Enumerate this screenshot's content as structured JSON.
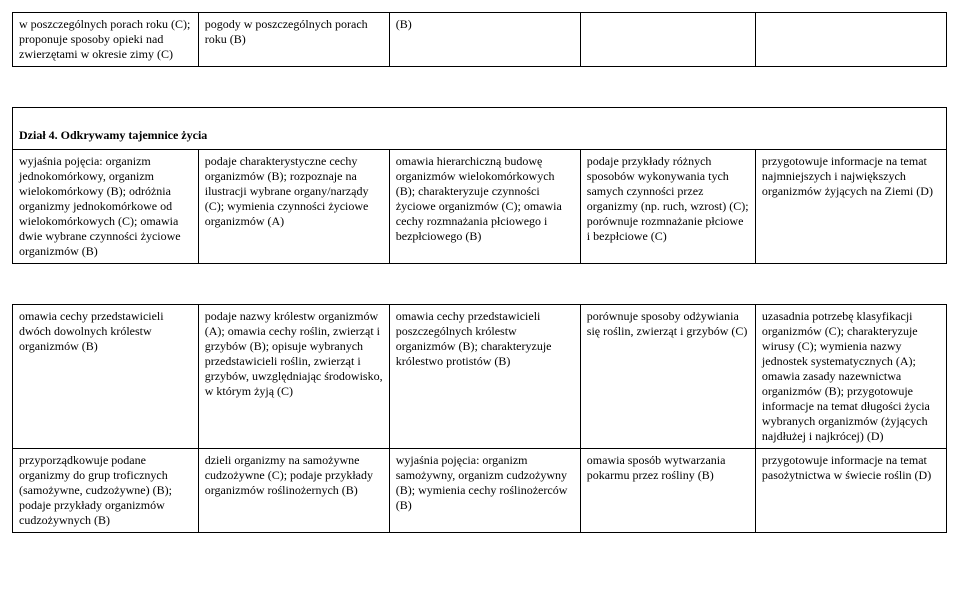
{
  "tableA": {
    "row0": {
      "c1": "w poszczególnych porach roku (C); proponuje sposoby opieki nad zwierzętami w okresie zimy (C)",
      "c2": "pogody w poszczególnych porach roku (B)",
      "c3": "(B)",
      "c4": "",
      "c5": ""
    }
  },
  "section": {
    "title": "Dział 4. Odkrywamy tajemnice życia"
  },
  "tableB": {
    "row0": {
      "c1": "wyjaśnia pojęcia: organizm jednokomórkowy, organizm wielokomórkowy (B); odróżnia organizmy jednokomórkowe od wielokomórkowych (C); omawia dwie wybrane czynności życiowe organizmów (B)",
      "c2": "podaje charakterystyczne cechy organizmów (B); rozpoznaje na ilustracji wybrane organy/narządy (C); wymienia czynności życiowe organizmów (A)",
      "c3": "omawia hierarchiczną budowę organizmów wielokomórkowych (B); charakteryzuje czynności życiowe organizmów (C); omawia cechy rozmnażania płciowego i bezpłciowego (B)",
      "c4": "podaje przykłady różnych sposobów wykonywania tych samych czynności przez organizmy (np. ruch, wzrost) (C); porównuje rozmnażanie płciowe i bezpłciowe (C)",
      "c5": "przygotowuje informacje na temat najmniejszych i największych organizmów żyjących na Ziemi (D)"
    }
  },
  "tableC": {
    "row0": {
      "c1": "omawia cechy przedstawicieli dwóch dowolnych królestw organizmów (B)",
      "c2": "podaje nazwy królestw organizmów (A); omawia cechy roślin, zwierząt i grzybów (B); opisuje wybranych przedstawicieli roślin, zwierząt i grzybów, uwzględniając środowisko, w którym żyją (C)",
      "c3": "omawia cechy przedstawicieli poszczególnych królestw organizmów (B); charakteryzuje królestwo protistów (B)",
      "c4": "porównuje sposoby odżywiania się roślin, zwierząt i grzybów (C)",
      "c5": "uzasadnia potrzebę klasyfikacji organizmów (C); charakteryzuje wirusy (C); wymienia nazwy jednostek systematycznych (A); omawia zasady nazewnictwa organizmów (B); przygotowuje informacje na temat długości życia wybranych organizmów (żyjących najdłużej i najkrócej) (D)"
    },
    "row1": {
      "c1": "przyporządkowuje podane organizmy do grup troficznych (samożywne, cudzożywne) (B); podaje przykłady organizmów cudzożywnych (B)",
      "c2": "dzieli organizmy na samożywne cudzożywne (C); podaje przykłady organizmów roślinożernych (B)",
      "c3": "wyjaśnia pojęcia: organizm samożywny, organizm cudzożywny (B); wymienia cechy roślinożerców (B)",
      "c4": "omawia sposób wytwarzania pokarmu przez rośliny (B)",
      "c5": "przygotowuje informacje na temat pasożytnictwa w świecie roślin (D)"
    }
  }
}
